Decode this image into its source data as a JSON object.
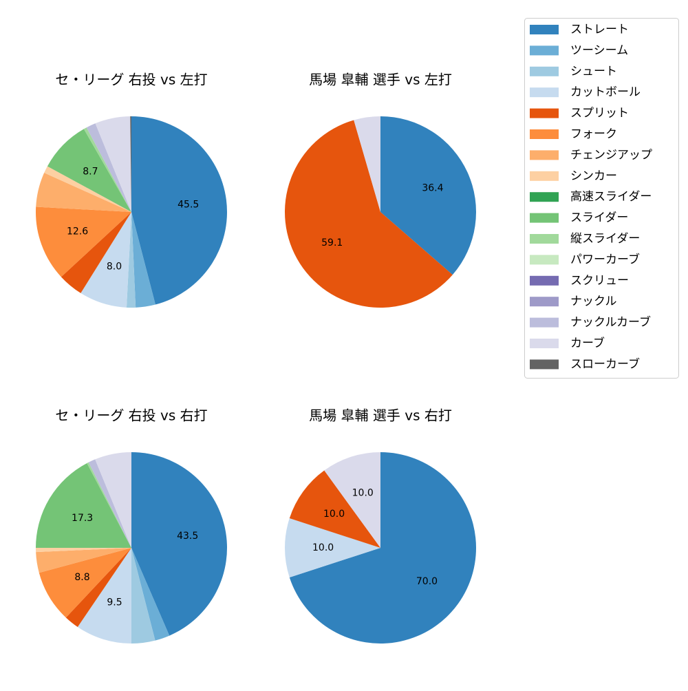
{
  "legend": {
    "labels": [
      "ストレート",
      "ツーシーム",
      "シュート",
      "カットボール",
      "スプリット",
      "フォーク",
      "チェンジアップ",
      "シンカー",
      "高速スライダー",
      "スライダー",
      "縦スライダー",
      "パワーカーブ",
      "スクリュー",
      "ナックル",
      "ナックルカーブ",
      "カーブ",
      "スローカーブ"
    ],
    "colors": [
      "#3182bd",
      "#6baed6",
      "#9ecae1",
      "#c6dbef",
      "#e6550d",
      "#fd8d3c",
      "#fdae6b",
      "#fdd0a2",
      "#31a354",
      "#74c476",
      "#a1d99b",
      "#c7e9c0",
      "#756bb1",
      "#9e9ac8",
      "#bcbddc",
      "#dadaeb",
      "#636363"
    ]
  },
  "chart_data": [
    {
      "type": "pie",
      "title": "セ・リーグ 右投 vs 左打",
      "categories": [
        "ストレート",
        "ツーシーム",
        "シュート",
        "カットボール",
        "スプリット",
        "フォーク",
        "チェンジアップ",
        "シンカー",
        "スライダー",
        "縦スライダー",
        "ナックルカーブ",
        "カーブ",
        "スローカーブ"
      ],
      "values": [
        45.5,
        3.3,
        1.5,
        8.0,
        4.2,
        12.6,
        5.8,
        1.2,
        8.7,
        0.5,
        1.6,
        5.9,
        0.2
      ],
      "value_labels": [
        "45.5",
        null,
        null,
        "8.0",
        null,
        "12.6",
        null,
        null,
        "8.7",
        null,
        null,
        null,
        null
      ]
    },
    {
      "type": "pie",
      "title": "馬場 皐輔 選手 vs 左打",
      "categories": [
        "ストレート",
        "スプリット",
        "カーブ"
      ],
      "values": [
        36.4,
        59.1,
        4.5
      ],
      "value_labels": [
        "36.4",
        "59.1",
        null
      ]
    },
    {
      "type": "pie",
      "title": "セ・リーグ 右投 vs 右打",
      "categories": [
        "ストレート",
        "ツーシーム",
        "シュート",
        "カットボール",
        "スプリット",
        "フォーク",
        "チェンジアップ",
        "シンカー",
        "スライダー",
        "縦スライダー",
        "ナックルカーブ",
        "カーブ"
      ],
      "values": [
        43.5,
        2.5,
        4.0,
        9.5,
        2.5,
        8.8,
        3.5,
        0.7,
        17.3,
        0.3,
        1.2,
        6.2
      ],
      "value_labels": [
        "43.5",
        null,
        null,
        "9.5",
        null,
        "8.8",
        null,
        null,
        "17.3",
        null,
        null,
        null
      ]
    },
    {
      "type": "pie",
      "title": "馬場 皐輔 選手 vs 右打",
      "categories": [
        "ストレート",
        "カットボール",
        "スプリット",
        "カーブ"
      ],
      "values": [
        70,
        10,
        10,
        10
      ],
      "value_labels": [
        "70.0",
        "10.0",
        "10.0",
        "10.0"
      ]
    }
  ]
}
